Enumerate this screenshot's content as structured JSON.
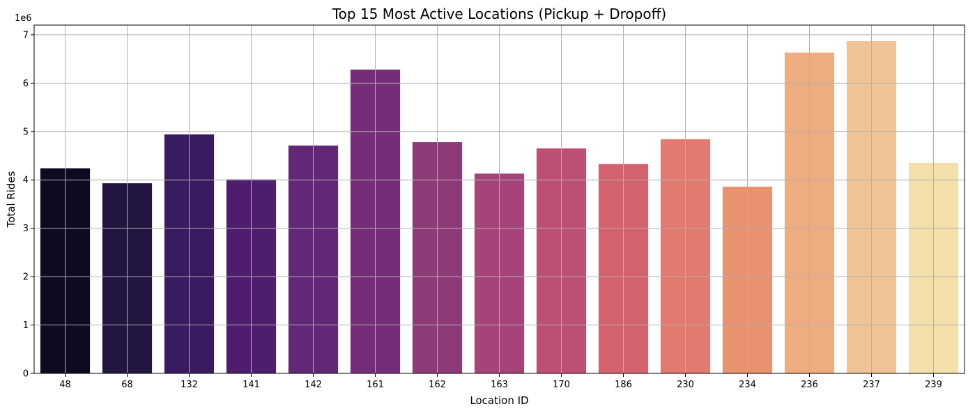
{
  "chart_data": {
    "type": "bar",
    "title": "Top 15 Most Active Locations (Pickup + Dropoff)",
    "xlabel": "Location ID",
    "ylabel": "Total Rides",
    "scale_note": "1e6",
    "categories": [
      "48",
      "68",
      "132",
      "141",
      "142",
      "161",
      "162",
      "163",
      "170",
      "186",
      "230",
      "234",
      "236",
      "237",
      "239"
    ],
    "values": [
      4240000,
      3930000,
      4940000,
      4010000,
      4710000,
      6280000,
      4780000,
      4130000,
      4650000,
      4330000,
      4840000,
      3860000,
      6630000,
      6870000,
      4350000
    ],
    "colors": [
      "#0d0b22",
      "#221641",
      "#391b5f",
      "#4e1d6e",
      "#632777",
      "#762d79",
      "#8e3a79",
      "#a64479",
      "#bd4f72",
      "#d4626e",
      "#e27a70",
      "#e8926f",
      "#eead80",
      "#f0c497",
      "#f3dfac"
    ],
    "ylim": [
      0,
      7200000
    ],
    "yticks": [
      0,
      1000000,
      2000000,
      3000000,
      4000000,
      5000000,
      6000000,
      7000000
    ],
    "ytick_labels": [
      "0",
      "1",
      "2",
      "3",
      "4",
      "5",
      "6",
      "7"
    ],
    "grid": true
  }
}
